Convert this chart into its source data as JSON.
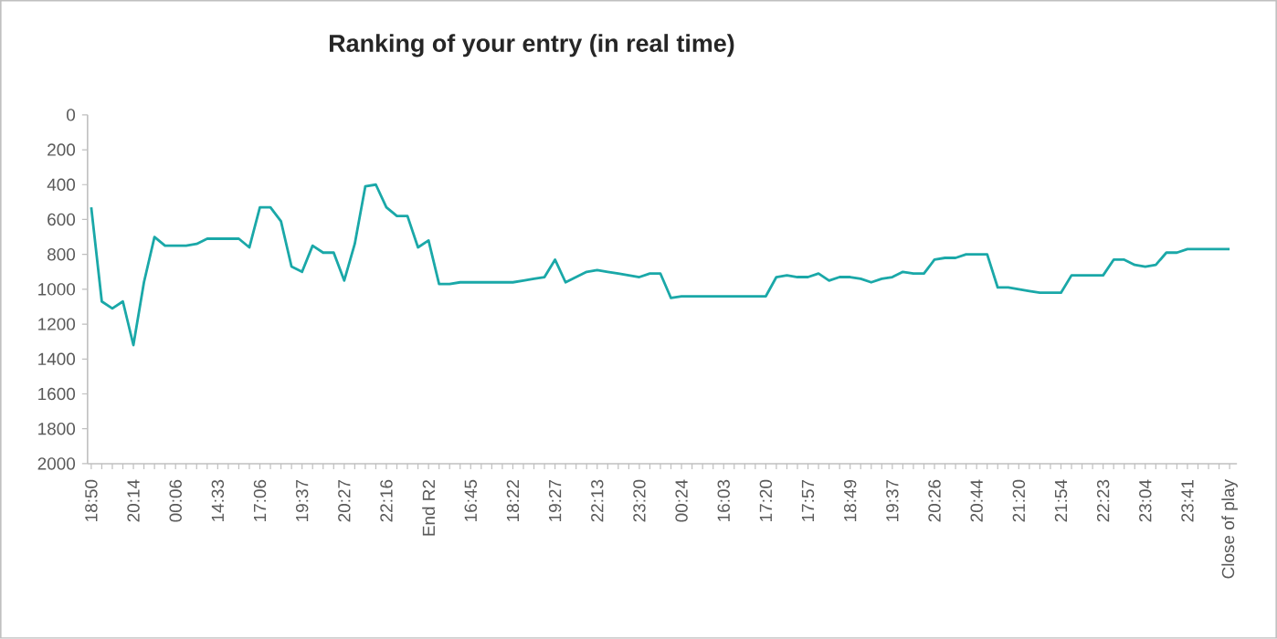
{
  "chart_data": {
    "type": "line",
    "title": "Ranking of your entry (in real time)",
    "categories": [
      "18:50",
      null,
      null,
      null,
      "20:14",
      null,
      null,
      null,
      "00:06",
      null,
      null,
      null,
      "14:33",
      null,
      null,
      null,
      "17:06",
      null,
      null,
      null,
      "19:37",
      null,
      null,
      null,
      "20:27",
      null,
      null,
      null,
      "22:16",
      null,
      null,
      null,
      "End R2",
      null,
      null,
      null,
      "16:45",
      null,
      null,
      null,
      "18:22",
      null,
      null,
      null,
      "19:27",
      null,
      null,
      null,
      "22:13",
      null,
      null,
      null,
      "23:20",
      null,
      null,
      null,
      "00:24",
      null,
      null,
      null,
      "16:03",
      null,
      null,
      null,
      "17:20",
      null,
      null,
      null,
      "17:57",
      null,
      null,
      null,
      "18:49",
      null,
      null,
      null,
      "19:37",
      null,
      null,
      null,
      "20:26",
      null,
      null,
      null,
      "20:44",
      null,
      null,
      null,
      "21:20",
      null,
      null,
      null,
      "21:54",
      null,
      null,
      null,
      "22:23",
      null,
      null,
      null,
      "23:04",
      null,
      null,
      null,
      "23:41",
      null,
      null,
      null,
      "Close of play"
    ],
    "values": [
      530,
      1070,
      1110,
      1070,
      1320,
      960,
      700,
      750,
      750,
      750,
      740,
      710,
      710,
      710,
      710,
      760,
      530,
      530,
      610,
      870,
      900,
      750,
      790,
      790,
      950,
      740,
      410,
      400,
      530,
      580,
      580,
      760,
      720,
      970,
      970,
      960,
      960,
      960,
      960,
      960,
      960,
      950,
      940,
      930,
      830,
      960,
      930,
      900,
      890,
      900,
      910,
      920,
      930,
      910,
      910,
      1050,
      1040,
      1040,
      1040,
      1040,
      1040,
      1040,
      1040,
      1040,
      1040,
      930,
      920,
      930,
      930,
      910,
      950,
      930,
      930,
      940,
      960,
      940,
      930,
      900,
      910,
      910,
      830,
      820,
      820,
      800,
      800,
      800,
      990,
      990,
      1000,
      1010,
      1020,
      1020,
      1020,
      920,
      920,
      920,
      920,
      830,
      830,
      860,
      870,
      860,
      790,
      790,
      770,
      770,
      770,
      770,
      770
    ],
    "color": "#1aa8a8",
    "ylim": [
      2000,
      0
    ],
    "yticks": [
      0,
      200,
      400,
      600,
      800,
      1000,
      1200,
      1400,
      1600,
      1800,
      2000
    ],
    "grid": false,
    "marker": "none",
    "line_style": "solid"
  }
}
